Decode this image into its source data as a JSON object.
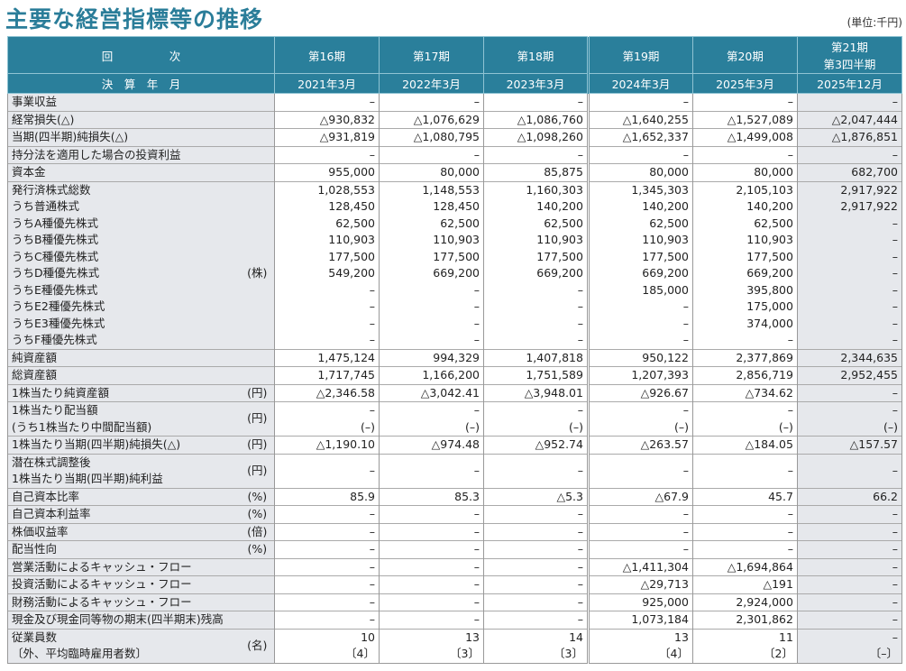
{
  "title": "主要な経営指標等の推移",
  "unit_note": "(単位:千円)",
  "header": {
    "row_label": "回　　　　　次",
    "date_label": "決　算　年　月",
    "periods": [
      "第16期",
      "第17期",
      "第18期",
      "第19期",
      "第20期",
      "第21期\n第3四半期"
    ],
    "dates": [
      "2021年3月",
      "2022年3月",
      "2023年3月",
      "2024年3月",
      "2025年3月",
      "2025年12月"
    ]
  },
  "rows": [
    {
      "label": "事業収益",
      "unit": "",
      "values": [
        "–",
        "–",
        "–",
        "–",
        "–",
        "–"
      ]
    },
    {
      "label": "経常損失(△)",
      "unit": "",
      "values": [
        "△930,832",
        "△1,076,629",
        "△1,086,760",
        "△1,640,255",
        "△1,527,089",
        "△2,047,444"
      ]
    },
    {
      "label": "当期(四半期)純損失(△)",
      "unit": "",
      "values": [
        "△931,819",
        "△1,080,795",
        "△1,098,260",
        "△1,652,337",
        "△1,499,008",
        "△1,876,851"
      ]
    },
    {
      "label": "持分法を適用した場合の投資利益",
      "unit": "",
      "values": [
        "–",
        "–",
        "–",
        "–",
        "–",
        "–"
      ]
    },
    {
      "label": "資本金",
      "unit": "",
      "values": [
        "955,000",
        "80,000",
        "85,875",
        "80,000",
        "80,000",
        "682,700"
      ]
    },
    {
      "label": "発行済株式総数",
      "unit": "",
      "values": [
        "1,028,553",
        "1,148,553",
        "1,160,303",
        "1,345,303",
        "2,105,103",
        "2,917,922"
      ]
    },
    {
      "label": "うち普通株式",
      "unit": "",
      "values": [
        "128,450",
        "128,450",
        "140,200",
        "140,200",
        "140,200",
        "2,917,922"
      ]
    },
    {
      "label": "うちA種優先株式",
      "unit": "",
      "values": [
        "62,500",
        "62,500",
        "62,500",
        "62,500",
        "62,500",
        "–"
      ]
    },
    {
      "label": "うちB種優先株式",
      "unit": "",
      "values": [
        "110,903",
        "110,903",
        "110,903",
        "110,903",
        "110,903",
        "–"
      ]
    },
    {
      "label": "うちC種優先株式",
      "unit": "",
      "values": [
        "177,500",
        "177,500",
        "177,500",
        "177,500",
        "177,500",
        "–"
      ]
    },
    {
      "label": "うちD種優先株式",
      "unit": "(株)",
      "values": [
        "549,200",
        "669,200",
        "669,200",
        "669,200",
        "669,200",
        "–"
      ]
    },
    {
      "label": "うちE種優先株式",
      "unit": "",
      "values": [
        "–",
        "–",
        "–",
        "185,000",
        "395,800",
        "–"
      ]
    },
    {
      "label": "うちE2種優先株式",
      "unit": "",
      "values": [
        "–",
        "–",
        "–",
        "–",
        "175,000",
        "–"
      ]
    },
    {
      "label": "うちE3種優先株式",
      "unit": "",
      "values": [
        "–",
        "–",
        "–",
        "–",
        "374,000",
        "–"
      ]
    },
    {
      "label": "うちF種優先株式",
      "unit": "",
      "values": [
        "–",
        "–",
        "–",
        "–",
        "–",
        "–"
      ]
    },
    {
      "label": "純資産額",
      "unit": "",
      "values": [
        "1,475,124",
        "994,329",
        "1,407,818",
        "950,122",
        "2,377,869",
        "2,344,635"
      ]
    },
    {
      "label": "総資産額",
      "unit": "",
      "values": [
        "1,717,745",
        "1,166,200",
        "1,751,589",
        "1,207,393",
        "2,856,719",
        "2,952,455"
      ]
    },
    {
      "label": "1株当たり純資産額",
      "unit": "(円)",
      "values": [
        "△2,346.58",
        "△3,042.41",
        "△3,948.01",
        "△926.67",
        "△734.62",
        "–"
      ]
    },
    {
      "label": "1株当たり配当額\n(うち1株当たり中間配当額)",
      "unit": "(円)",
      "values": [
        "–\n(–)",
        "–\n(–)",
        "–\n(–)",
        "–\n(–)",
        "–\n(–)",
        "–\n(–)"
      ]
    },
    {
      "label": "1株当たり当期(四半期)純損失(△)",
      "unit": "(円)",
      "values": [
        "△1,190.10",
        "△974.48",
        "△952.74",
        "△263.57",
        "△184.05",
        "△157.57"
      ]
    },
    {
      "label": "潜在株式調整後\n1株当たり当期(四半期)純利益",
      "unit": "(円)",
      "values": [
        "–",
        "–",
        "–",
        "–",
        "–",
        "–"
      ]
    },
    {
      "label": "自己資本比率",
      "unit": "(%)",
      "values": [
        "85.9",
        "85.3",
        "△5.3",
        "△67.9",
        "45.7",
        "66.2"
      ]
    },
    {
      "label": "自己資本利益率",
      "unit": "(%)",
      "values": [
        "–",
        "–",
        "–",
        "–",
        "–",
        "–"
      ]
    },
    {
      "label": "株価収益率",
      "unit": "(倍)",
      "values": [
        "–",
        "–",
        "–",
        "–",
        "–",
        "–"
      ]
    },
    {
      "label": "配当性向",
      "unit": "(%)",
      "values": [
        "–",
        "–",
        "–",
        "–",
        "–",
        "–"
      ]
    },
    {
      "label": "営業活動によるキャッシュ・フロー",
      "unit": "",
      "values": [
        "–",
        "–",
        "–",
        "△1,411,304",
        "△1,694,864",
        "–"
      ]
    },
    {
      "label": "投資活動によるキャッシュ・フロー",
      "unit": "",
      "values": [
        "–",
        "–",
        "–",
        "△29,713",
        "△191",
        "–"
      ]
    },
    {
      "label": "財務活動によるキャッシュ・フロー",
      "unit": "",
      "values": [
        "–",
        "–",
        "–",
        "925,000",
        "2,924,000",
        "–"
      ]
    },
    {
      "label": "現金及び現金同等物の期末(四半期末)残高",
      "unit": "",
      "values": [
        "–",
        "–",
        "–",
        "1,073,184",
        "2,301,862",
        "–"
      ]
    },
    {
      "label": "従業員数\n〔外、平均臨時雇用者数〕",
      "unit": "(名)",
      "values": [
        "10\n〔4〕",
        "13\n〔3〕",
        "14\n〔3〕",
        "13\n〔4〕",
        "11\n〔2〕",
        "–\n〔–〕"
      ]
    }
  ]
}
